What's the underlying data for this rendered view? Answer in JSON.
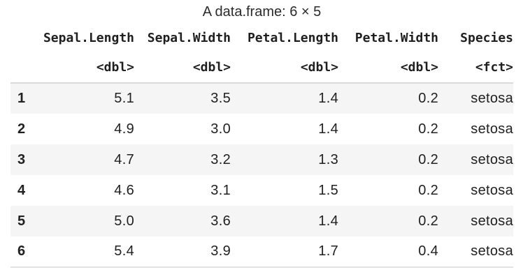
{
  "chart_data": {
    "type": "table",
    "title": "A data.frame: 6 × 5",
    "columns": [
      "Sepal.Length",
      "Sepal.Width",
      "Petal.Length",
      "Petal.Width",
      "Species"
    ],
    "column_types": [
      "<dbl>",
      "<dbl>",
      "<dbl>",
      "<dbl>",
      "<fct>"
    ],
    "row_labels": [
      "1",
      "2",
      "3",
      "4",
      "5",
      "6"
    ],
    "rows": [
      [
        "5.1",
        "3.5",
        "1.4",
        "0.2",
        "setosa"
      ],
      [
        "4.9",
        "3.0",
        "1.4",
        "0.2",
        "setosa"
      ],
      [
        "4.7",
        "3.2",
        "1.3",
        "0.2",
        "setosa"
      ],
      [
        "4.6",
        "3.1",
        "1.5",
        "0.2",
        "setosa"
      ],
      [
        "5.0",
        "3.6",
        "1.4",
        "0.2",
        "setosa"
      ],
      [
        "5.4",
        "3.9",
        "1.7",
        "0.4",
        "setosa"
      ]
    ],
    "layout": {
      "stripe_rows": "odd",
      "value_alignment": "right",
      "caption_position": "top"
    },
    "colors": {
      "stripe": "#f5f5f5",
      "header_rule": "#d9d9d9",
      "bottom_rule": "#e2e2e2",
      "text": "#212121"
    }
  }
}
